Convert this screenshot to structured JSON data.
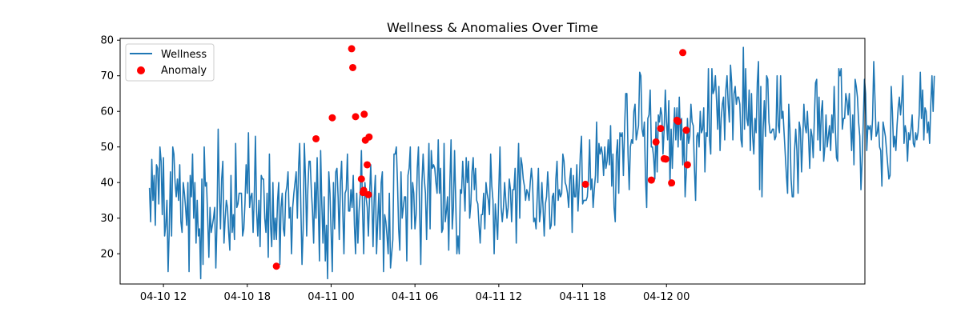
{
  "chart_data": {
    "type": "line",
    "title": "Wellness & Anomalies Over Time",
    "xlabel": "",
    "ylabel": "",
    "grid": false,
    "legend_position": "upper-left",
    "x_axis": {
      "type": "datetime",
      "range": [
        "2024-04-10T08:54:00",
        "2024-04-12T14:12:00"
      ],
      "ticks": [
        {
          "value": "2024-04-10T12:00:00",
          "label": "04-10 12"
        },
        {
          "value": "2024-04-10T18:00:00",
          "label": "04-10 18"
        },
        {
          "value": "2024-04-11T00:00:00",
          "label": "04-11 00"
        },
        {
          "value": "2024-04-11T06:00:00",
          "label": "04-11 06"
        },
        {
          "value": "2024-04-11T12:00:00",
          "label": "04-11 12"
        },
        {
          "value": "2024-04-11T18:00:00",
          "label": "04-11 18"
        },
        {
          "value": "2024-04-12T00:00:00",
          "label": "04-12 00"
        }
      ]
    },
    "y_axis": {
      "range": [
        11.5,
        80.5
      ],
      "ticks": [
        {
          "value": 20,
          "label": "20"
        },
        {
          "value": 30,
          "label": "30"
        },
        {
          "value": 40,
          "label": "40"
        },
        {
          "value": 50,
          "label": "50"
        },
        {
          "value": 60,
          "label": "60"
        },
        {
          "value": 70,
          "label": "70"
        },
        {
          "value": 80,
          "label": "80"
        }
      ]
    },
    "series": [
      {
        "name": "Wellness",
        "kind": "line",
        "color": "#1f77b4",
        "sampling": {
          "start": "2024-04-10T11:00:00",
          "interval_minutes": 5
        },
        "y": [
          38.5,
          29,
          46.5,
          35,
          42,
          28,
          45,
          44,
          34,
          50,
          46,
          31,
          47,
          25,
          28,
          35,
          15,
          27,
          43,
          25,
          50,
          48,
          40,
          36,
          41,
          35,
          45,
          29,
          26,
          40,
          37,
          33,
          28,
          40,
          15,
          42,
          36,
          48,
          30,
          40,
          23,
          35,
          25,
          27,
          13,
          41,
          17,
          50,
          39,
          40,
          30,
          19,
          33,
          26,
          28,
          30,
          33,
          16,
          29,
          55,
          37,
          27,
          41,
          46,
          23,
          30,
          35,
          33,
          26,
          21,
          42,
          26,
          31,
          24,
          51,
          33,
          34,
          37,
          37,
          37,
          25,
          27,
          34,
          45,
          37,
          54,
          33,
          36,
          37,
          26,
          36,
          53,
          32,
          25,
          35,
          22,
          42,
          41,
          41,
          30,
          26,
          37,
          19,
          48,
          28,
          22,
          40,
          24,
          30,
          24,
          35,
          40,
          17,
          33,
          37,
          27,
          25,
          37,
          39,
          43,
          30,
          33,
          20,
          33,
          37,
          40,
          43,
          30,
          44,
          51,
          33,
          17,
          27,
          51,
          41,
          25,
          38,
          46,
          46,
          38,
          32,
          23,
          40,
          30,
          47,
          33,
          18,
          49,
          34,
          23,
          36,
          18,
          28,
          13,
          43,
          37,
          26,
          15,
          40,
          27,
          43,
          44,
          36,
          24,
          40,
          46,
          32,
          20,
          37,
          38,
          48,
          32,
          32,
          38,
          33,
          42,
          28,
          20,
          37,
          23,
          32,
          37,
          49,
          32,
          20,
          40,
          36,
          33,
          25,
          36,
          45,
          35,
          22,
          36,
          42,
          20,
          29,
          37,
          24,
          40,
          43,
          15,
          31,
          29,
          25,
          20,
          37,
          16,
          20,
          24,
          48,
          48,
          50,
          40,
          27,
          21,
          43,
          30,
          33,
          36,
          36,
          18,
          42,
          44,
          50,
          27,
          40,
          37,
          27,
          31,
          44,
          50,
          32,
          17,
          40,
          48,
          41,
          37,
          24,
          39,
          51,
          27,
          49,
          44,
          45,
          44,
          40,
          37,
          52,
          37,
          44,
          26,
          27,
          51,
          29,
          32,
          36,
          21,
          40,
          52,
          27,
          33,
          49,
          35,
          20,
          25,
          20,
          38,
          37,
          46,
          39,
          32,
          47,
          40,
          46,
          30,
          34,
          43,
          47,
          38,
          44,
          35,
          34,
          28,
          23,
          31,
          31,
          37,
          27,
          40,
          37,
          35,
          31,
          48,
          39,
          35,
          20,
          34,
          29,
          24,
          38,
          50,
          33,
          29,
          33,
          40,
          35,
          30,
          33,
          41,
          38,
          29,
          38,
          38,
          44,
          23,
          40,
          51,
          30,
          47,
          45,
          41,
          39,
          35,
          38,
          37,
          35,
          40,
          44,
          40,
          29,
          30,
          27,
          36,
          44,
          29,
          32,
          40,
          33,
          25,
          34,
          36,
          43,
          37,
          27,
          28,
          36,
          37,
          28,
          41,
          46,
          35,
          38,
          36,
          37,
          48,
          46,
          40,
          39,
          37,
          33,
          41,
          44,
          26,
          42,
          36,
          36,
          45,
          32,
          39,
          48,
          53,
          34,
          35,
          35,
          35,
          36,
          41,
          52,
          38,
          41,
          33,
          38,
          42,
          57,
          40,
          51,
          48,
          50,
          48,
          42,
          50,
          44,
          46,
          52,
          45,
          56,
          39,
          48,
          33,
          29,
          48,
          52,
          37,
          54,
          53,
          54,
          42,
          55,
          65,
          65,
          48,
          38,
          50,
          52,
          51,
          60,
          62,
          52,
          54,
          56,
          71,
          70,
          55,
          53,
          57,
          41,
          33,
          58,
          59,
          66,
          50,
          50,
          47,
          41,
          57,
          43,
          59,
          57,
          61,
          59,
          48,
          55,
          66,
          57,
          52,
          63,
          39,
          55,
          44,
          54,
          61,
          52,
          61,
          50,
          64,
          52,
          58,
          45,
          55,
          36,
          43,
          58,
          51,
          53,
          62,
          57,
          56,
          44,
          35,
          53,
          54,
          50,
          60,
          54,
          55,
          61,
          43,
          54,
          53,
          72,
          52,
          48,
          72,
          65,
          66,
          70,
          63,
          55,
          67,
          49,
          58,
          62,
          64,
          52,
          66,
          70,
          62,
          57,
          73,
          68,
          52,
          65,
          67,
          62,
          64,
          64,
          62,
          52,
          50,
          78,
          55,
          72,
          58,
          56,
          66,
          49,
          65,
          53,
          48,
          58,
          54,
          68,
          74,
          38,
          67,
          36,
          55,
          63,
          53,
          70,
          69,
          57,
          54,
          54,
          55,
          55,
          52,
          53,
          70,
          56,
          54,
          70,
          58,
          60,
          54,
          48,
          42,
          37,
          62,
          55,
          41,
          36,
          36,
          49,
          55,
          49,
          37,
          57,
          55,
          43,
          52,
          62,
          56,
          54,
          60,
          53,
          44,
          55,
          53,
          47,
          58,
          68,
          69,
          52,
          64,
          49,
          60,
          63,
          46,
          50,
          59,
          50,
          53,
          56,
          49,
          59,
          54,
          67,
          55,
          47,
          46,
          72,
          70,
          72,
          55,
          58,
          58,
          65,
          63,
          59,
          65,
          57,
          49,
          59,
          45,
          69,
          67,
          64,
          57,
          53,
          38,
          46,
          57,
          69,
          65,
          49,
          56,
          55,
          56,
          52,
          58,
          74,
          64,
          53,
          54,
          57,
          50,
          49,
          39,
          57,
          55,
          53,
          49,
          45,
          41,
          42,
          67,
          60,
          50,
          53,
          49,
          56,
          61,
          64,
          59,
          63,
          70,
          51,
          56,
          54,
          46,
          54,
          52,
          55,
          59,
          51,
          50,
          54,
          52,
          54,
          59,
          71,
          58,
          66,
          52,
          61,
          60,
          54,
          57,
          51,
          62,
          70,
          60,
          70
        ]
      },
      {
        "name": "Anomaly",
        "kind": "scatter",
        "color": "#ff0000",
        "points": [
          {
            "x": "2024-04-10T20:05:00",
            "y": 16.5
          },
          {
            "x": "2024-04-10T22:55:00",
            "y": 52.3
          },
          {
            "x": "2024-04-11T00:05:00",
            "y": 58.2
          },
          {
            "x": "2024-04-11T01:28:00",
            "y": 77.6
          },
          {
            "x": "2024-04-11T01:33:00",
            "y": 72.3
          },
          {
            "x": "2024-04-11T01:45:00",
            "y": 58.5
          },
          {
            "x": "2024-04-11T02:10:00",
            "y": 41.0
          },
          {
            "x": "2024-04-11T02:17:00",
            "y": 37.2
          },
          {
            "x": "2024-04-11T02:20:00",
            "y": 37.8
          },
          {
            "x": "2024-04-11T02:22:00",
            "y": 59.2
          },
          {
            "x": "2024-04-11T02:27:00",
            "y": 51.9
          },
          {
            "x": "2024-04-11T02:35:00",
            "y": 45.0
          },
          {
            "x": "2024-04-11T02:40:00",
            "y": 36.6
          },
          {
            "x": "2024-04-11T02:43:00",
            "y": 52.8
          },
          {
            "x": "2024-04-11T18:12:00",
            "y": 39.5
          },
          {
            "x": "2024-04-11T22:55:00",
            "y": 40.7
          },
          {
            "x": "2024-04-11T23:15:00",
            "y": 51.4
          },
          {
            "x": "2024-04-11T23:35:00",
            "y": 55.2
          },
          {
            "x": "2024-04-11T23:50:00",
            "y": 46.7
          },
          {
            "x": "2024-04-11T23:57:00",
            "y": 46.6
          },
          {
            "x": "2024-04-12T00:22:00",
            "y": 39.9
          },
          {
            "x": "2024-04-12T00:45:00",
            "y": 57.5
          },
          {
            "x": "2024-04-12T00:50:00",
            "y": 57.2
          },
          {
            "x": "2024-04-12T01:10:00",
            "y": 76.5
          },
          {
            "x": "2024-04-12T01:25:00",
            "y": 54.7
          },
          {
            "x": "2024-04-12T01:30:00",
            "y": 45.0
          }
        ]
      }
    ]
  }
}
